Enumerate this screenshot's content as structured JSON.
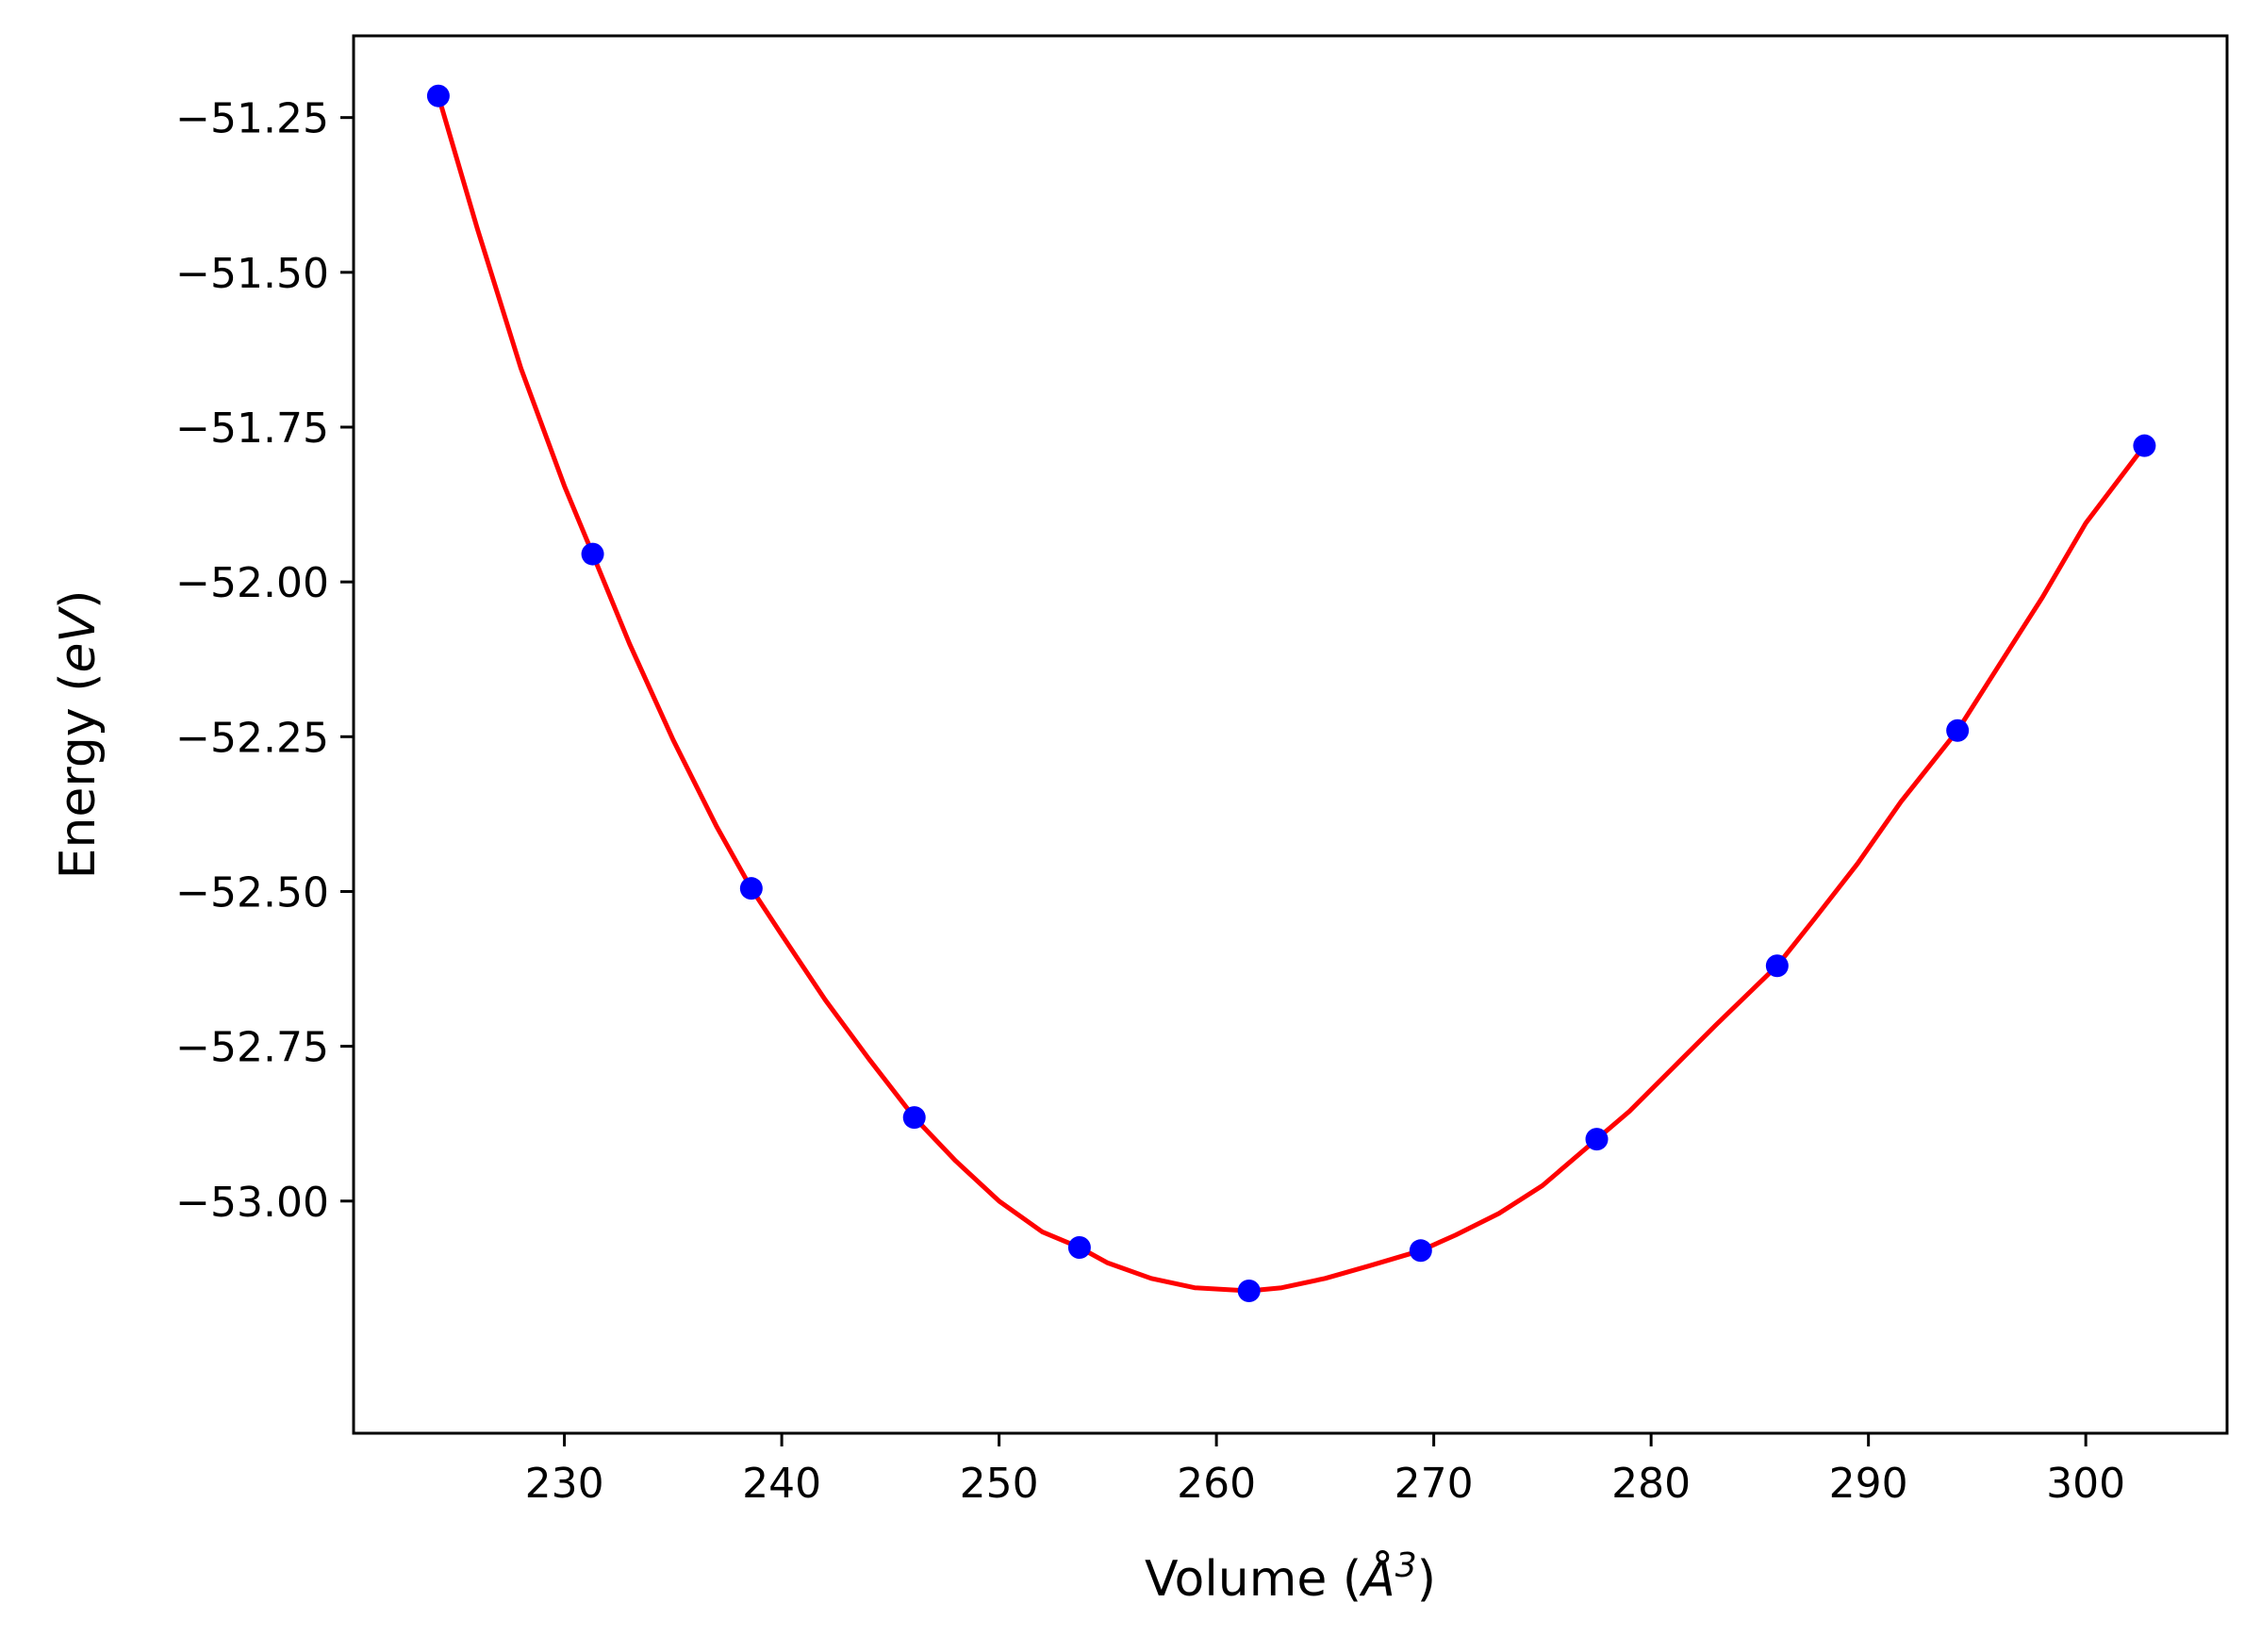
{
  "chart_data": {
    "type": "scatter",
    "title": "",
    "xlabel": {
      "prefix": "Volume (",
      "unit": "Å",
      "exponent": "3",
      "suffix": ")"
    },
    "ylabel": {
      "prefix": "Energy (",
      "unit": "eV",
      "suffix": ")"
    },
    "xlim": [
      220.3,
      306.5
    ],
    "ylim": [
      -53.375,
      -51.118
    ],
    "grid": false,
    "legend": "none",
    "x_ticks": [
      230,
      240,
      250,
      260,
      270,
      280,
      290,
      300
    ],
    "x_tick_labels": [
      "230",
      "240",
      "250",
      "260",
      "270",
      "280",
      "290",
      "300"
    ],
    "y_ticks": [
      -51.25,
      -51.5,
      -51.75,
      -52.0,
      -52.25,
      -52.5,
      -52.75,
      -53.0
    ],
    "y_tick_labels": [
      "−51.25",
      "−51.50",
      "−51.75",
      "−52.00",
      "−52.25",
      "−52.50",
      "−52.75",
      "−53.00"
    ],
    "series": [
      {
        "kind": "points",
        "color": "#0000ff",
        "x": [
          224.2,
          231.3,
          238.6,
          246.1,
          253.7,
          261.5,
          269.4,
          277.5,
          285.8,
          294.1,
          302.7
        ],
        "y": [
          -51.215,
          -51.955,
          -52.495,
          -52.865,
          -53.075,
          -53.145,
          -53.08,
          -52.9,
          -52.62,
          -52.24,
          -51.78
        ]
      },
      {
        "kind": "fit-curve",
        "color": "#ff0000",
        "x": [
          224.2,
          226.0,
          228.0,
          230.0,
          231.3,
          233.0,
          235.0,
          237.0,
          238.6,
          240.0,
          242.0,
          244.0,
          246.1,
          248.0,
          250.0,
          252.0,
          253.7,
          255.0,
          257.0,
          259.0,
          261.5,
          263.0,
          265.0,
          267.0,
          269.4,
          271.0,
          273.0,
          275.0,
          277.5,
          279.0,
          281.0,
          283.0,
          285.8,
          287.5,
          289.5,
          291.5,
          294.1,
          296.0,
          298.0,
          300.0,
          302.7
        ],
        "y": [
          -51.215,
          -51.43,
          -51.655,
          -51.845,
          -51.955,
          -52.1,
          -52.255,
          -52.395,
          -52.495,
          -52.57,
          -52.675,
          -52.77,
          -52.865,
          -52.935,
          -53.0,
          -53.05,
          -53.075,
          -53.1,
          -53.125,
          -53.14,
          -53.145,
          -53.14,
          -53.125,
          -53.105,
          -53.08,
          -53.055,
          -53.02,
          -52.975,
          -52.9,
          -52.855,
          -52.785,
          -52.715,
          -52.62,
          -52.545,
          -52.455,
          -52.355,
          -52.24,
          -52.135,
          -52.025,
          -51.905,
          -51.78
        ]
      }
    ]
  }
}
